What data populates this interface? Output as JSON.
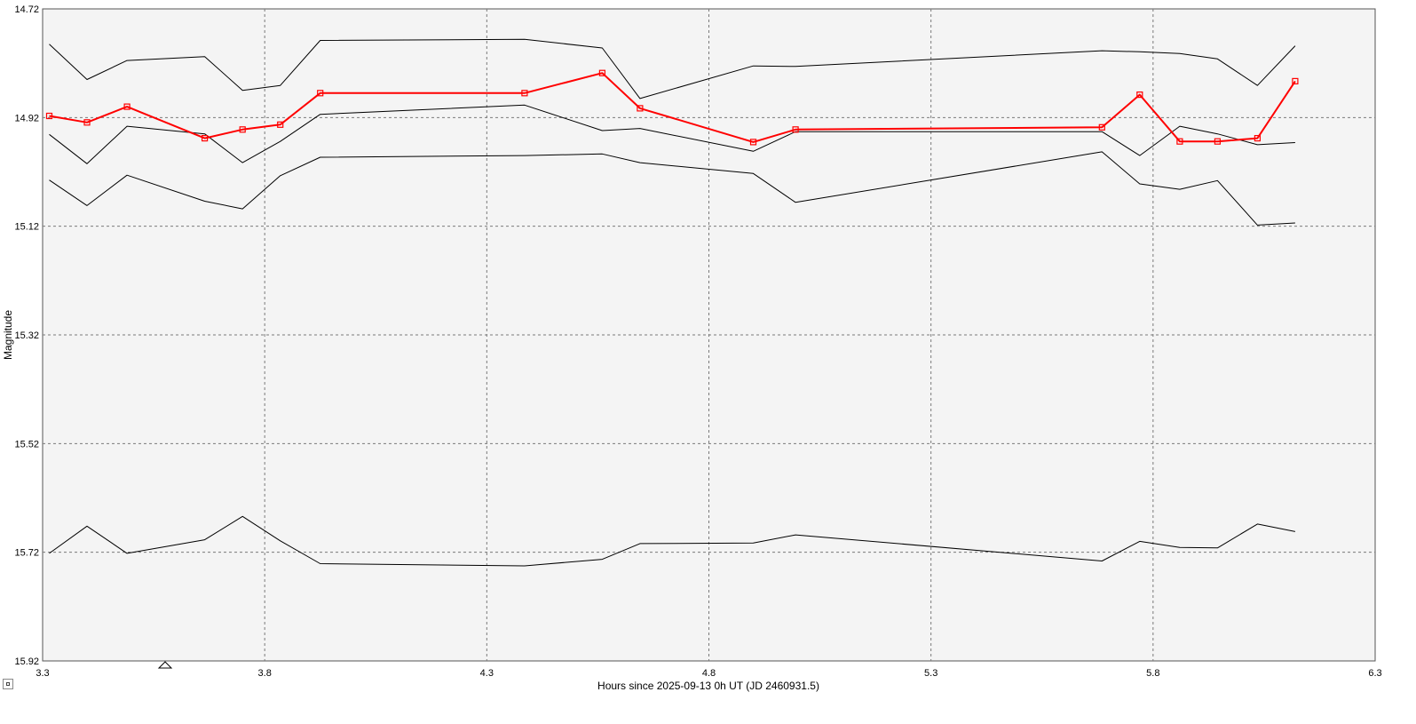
{
  "chart_data": {
    "type": "line",
    "xlabel": "Hours since 2025-09-13 0h UT (JD 2460931.5)",
    "ylabel": "Magnitude",
    "xlim": [
      3.3,
      6.3
    ],
    "ylim": [
      14.72,
      15.92
    ],
    "y_inverted": true,
    "x_ticks": [
      "3.3",
      "3.8",
      "4.3",
      "4.8",
      "5.3",
      "5.8",
      "6.3"
    ],
    "y_ticks": [
      "14.72",
      "14.92",
      "15.12",
      "15.32",
      "15.52",
      "15.72",
      "15.92"
    ],
    "grid": true,
    "series": [
      {
        "role": "target",
        "color": "#ff0000",
        "markers": true,
        "x": [
          3.315,
          3.4,
          3.49,
          3.665,
          3.75,
          3.835,
          3.925,
          4.385,
          4.56,
          4.645,
          4.9,
          4.995,
          5.685,
          5.77,
          5.86,
          5.945,
          6.035,
          6.12
        ],
        "y": [
          14.917,
          14.929,
          14.9,
          14.958,
          14.942,
          14.933,
          14.875,
          14.875,
          14.838,
          14.903,
          14.965,
          14.942,
          14.938,
          14.878,
          14.964,
          14.964,
          14.958,
          14.853
        ]
      },
      {
        "role": "comparison",
        "color": "#000000",
        "markers": false,
        "x": [
          3.315,
          3.4,
          3.49,
          3.665,
          3.75,
          3.835,
          3.925,
          4.385,
          4.56,
          4.645,
          4.9,
          4.995,
          5.685,
          5.77,
          5.86,
          5.945,
          6.035,
          6.12
        ],
        "y": [
          14.785,
          14.85,
          14.815,
          14.808,
          14.87,
          14.861,
          14.778,
          14.776,
          14.792,
          14.885,
          14.825,
          14.826,
          14.797,
          14.799,
          14.802,
          14.812,
          14.861,
          14.788
        ]
      },
      {
        "role": "comparison",
        "color": "#000000",
        "markers": false,
        "x": [
          3.315,
          3.4,
          3.49,
          3.665,
          3.75,
          3.835,
          3.925,
          4.385,
          4.56,
          4.645,
          4.9,
          4.995,
          5.685,
          5.77,
          5.86,
          5.945,
          6.035,
          6.12
        ],
        "y": [
          14.951,
          15.005,
          14.936,
          14.95,
          15.003,
          14.964,
          14.914,
          14.897,
          14.944,
          14.94,
          14.982,
          14.946,
          14.946,
          14.99,
          14.936,
          14.95,
          14.97,
          14.966
        ]
      },
      {
        "role": "comparison",
        "color": "#000000",
        "markers": false,
        "x": [
          3.315,
          3.4,
          3.49,
          3.665,
          3.75,
          3.835,
          3.925,
          4.385,
          4.56,
          4.645,
          4.9,
          4.995,
          5.685,
          5.77,
          5.86,
          5.945,
          6.035,
          6.12
        ],
        "y": [
          15.035,
          15.082,
          15.026,
          15.074,
          15.088,
          15.027,
          14.993,
          14.99,
          14.987,
          15.003,
          15.023,
          15.076,
          14.983,
          15.042,
          15.052,
          15.036,
          15.118,
          15.114
        ]
      },
      {
        "role": "comparison",
        "color": "#000000",
        "markers": false,
        "x": [
          3.315,
          3.4,
          3.49,
          3.665,
          3.75,
          3.835,
          3.925,
          4.385,
          4.56,
          4.645,
          4.9,
          4.995,
          5.685,
          5.77,
          5.86,
          5.945,
          6.035,
          6.12
        ],
        "y": [
          15.722,
          15.672,
          15.722,
          15.697,
          15.654,
          15.699,
          15.741,
          15.745,
          15.733,
          15.704,
          15.703,
          15.688,
          15.736,
          15.7,
          15.711,
          15.712,
          15.668,
          15.682
        ]
      }
    ]
  },
  "colors": {
    "plot_background": "#f4f4f4",
    "grid": "#7a7a7a",
    "target": "#ff0000",
    "comparison": "#000000"
  },
  "icons": {
    "time_marker": "triangle-marker-icon",
    "scroll_button": "square-button-icon"
  }
}
